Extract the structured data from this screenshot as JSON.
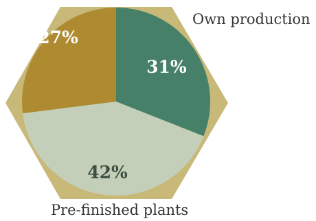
{
  "chart_data": {
    "type": "pie",
    "slices": [
      {
        "name": "Own production",
        "value": 31,
        "label": "31%",
        "color": "#468068"
      },
      {
        "name": "Pre-finished plants",
        "value": 42,
        "label": "42%",
        "color": "#c3cfb9"
      },
      {
        "name": "",
        "value": 27,
        "label": "27%",
        "color": "#ae8b30"
      }
    ],
    "annotations": {
      "own": "Own production",
      "pre": "Pre-finished plants"
    }
  },
  "colors": {
    "hexagon": "#c8b978",
    "label_light": "#ffffff",
    "label_dark": "#3d4f40",
    "text": "#333333"
  }
}
